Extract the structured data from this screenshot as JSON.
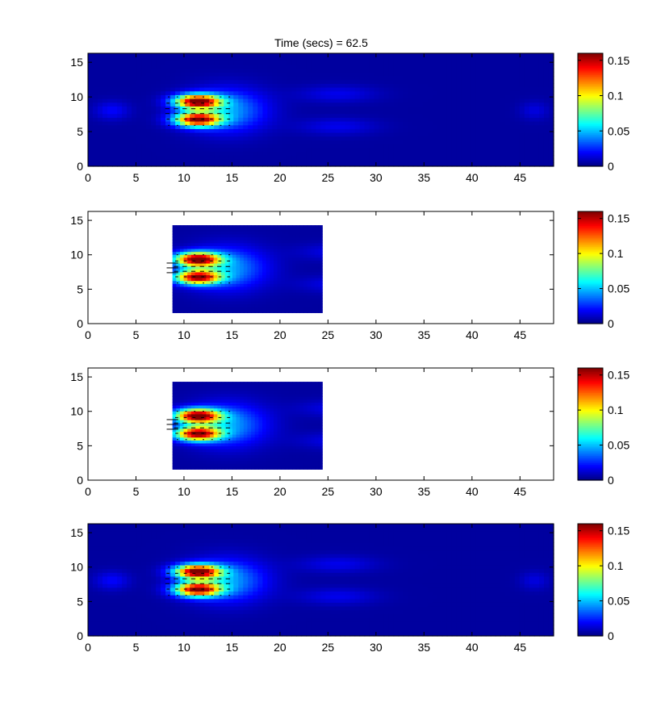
{
  "figure": {
    "title": "Time (secs) = 62.5",
    "background": "#ffffff"
  },
  "chart_data": [
    {
      "type": "heatmap",
      "title": "Time (secs) = 62.5",
      "xlabel": "",
      "ylabel": "",
      "xlim": [
        0,
        48.5
      ],
      "ylim": [
        0,
        16.3
      ],
      "xticks": [
        "0",
        "5",
        "10",
        "15",
        "20",
        "25",
        "30",
        "35",
        "40",
        "45"
      ],
      "yticks": [
        "0",
        "5",
        "10",
        "15"
      ],
      "domain": [
        0,
        48.5,
        0,
        16.3
      ],
      "field": "full",
      "colorbar": {
        "range": [
          0,
          0.16
        ],
        "ticks": [
          "0",
          "0.05",
          "0.1",
          "0.15"
        ],
        "colormap": "jet"
      },
      "grid": false
    },
    {
      "type": "heatmap",
      "title": "",
      "xlabel": "",
      "ylabel": "",
      "xlim": [
        0,
        48.5
      ],
      "ylim": [
        0,
        16.3
      ],
      "xticks": [
        "0",
        "5",
        "10",
        "15",
        "20",
        "25",
        "30",
        "35",
        "40",
        "45"
      ],
      "yticks": [
        "0",
        "5",
        "10",
        "15"
      ],
      "domain": [
        8.8,
        24.4,
        1.6,
        14.3
      ],
      "field": "sub",
      "colorbar": {
        "range": [
          0,
          0.16
        ],
        "ticks": [
          "0",
          "0.05",
          "0.1",
          "0.15"
        ],
        "colormap": "jet"
      },
      "grid": false
    },
    {
      "type": "heatmap",
      "title": "",
      "xlabel": "",
      "ylabel": "",
      "xlim": [
        0,
        48.5
      ],
      "ylim": [
        0,
        16.3
      ],
      "xticks": [
        "0",
        "5",
        "10",
        "15",
        "20",
        "25",
        "30",
        "35",
        "40",
        "45"
      ],
      "yticks": [
        "0",
        "5",
        "10",
        "15"
      ],
      "domain": [
        8.8,
        24.4,
        1.6,
        14.3
      ],
      "field": "sub",
      "colorbar": {
        "range": [
          0,
          0.16
        ],
        "ticks": [
          "0",
          "0.05",
          "0.1",
          "0.15"
        ],
        "colormap": "jet"
      },
      "grid": false
    },
    {
      "type": "heatmap",
      "title": "",
      "xlabel": "",
      "ylabel": "",
      "xlim": [
        0,
        48.5
      ],
      "ylim": [
        0,
        16.3
      ],
      "xticks": [
        "0",
        "5",
        "10",
        "15",
        "20",
        "25",
        "30",
        "35",
        "40",
        "45"
      ],
      "yticks": [
        "0",
        "5",
        "10",
        "15"
      ],
      "domain": [
        0,
        48.5,
        0,
        16.3
      ],
      "field": "full",
      "colorbar": {
        "range": [
          0,
          0.16
        ],
        "ticks": [
          "0",
          "0.05",
          "0.1",
          "0.15"
        ],
        "colormap": "jet"
      },
      "grid": false
    }
  ]
}
